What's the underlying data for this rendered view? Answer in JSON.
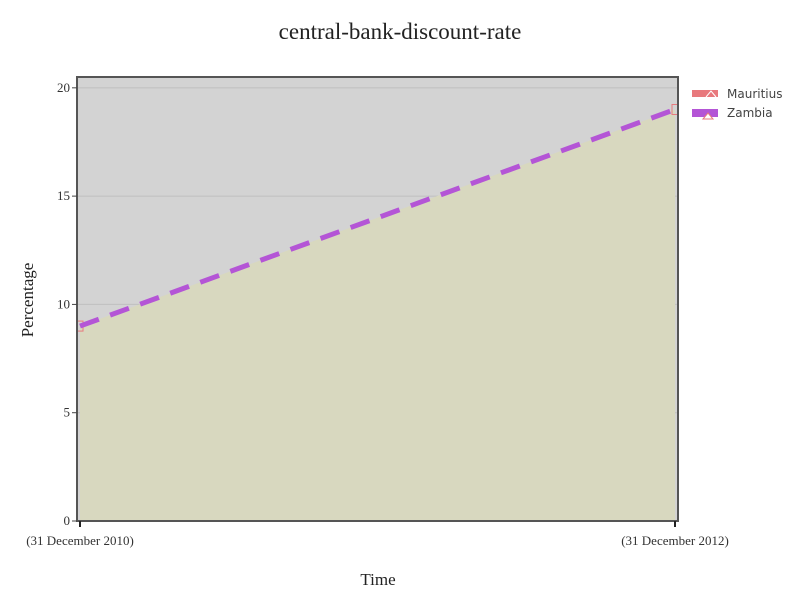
{
  "chart_data": {
    "type": "area",
    "title": "central-bank-discount-rate",
    "xlabel": "Time",
    "ylabel": "Percentage",
    "x": [
      "(31 December 2010)",
      "(31 December 2012)"
    ],
    "x_tick_labels": [
      "(31 December 2010)",
      "(31 December 2012)"
    ],
    "ylim": [
      0,
      20.5
    ],
    "y_ticks": [
      0,
      5,
      10,
      15,
      20
    ],
    "y_tick_labels": [
      "0",
      "5",
      "10",
      "15",
      "20"
    ],
    "grid": true,
    "legend_position": "top-right",
    "series": [
      {
        "name": "Mauritius",
        "values": [
          9.0,
          19.0
        ],
        "color": "#e8797d",
        "style": "filled area, light hatched"
      },
      {
        "name": "Zambia",
        "values": [
          9.0,
          19.0
        ],
        "color": "#b455d6",
        "style": "thick dashed line"
      }
    ],
    "colors": {
      "plot_background": "#d3d3d3",
      "area_fill": "#d8d8bf",
      "grid": "#bfbfbf",
      "axis": "#444444"
    }
  }
}
